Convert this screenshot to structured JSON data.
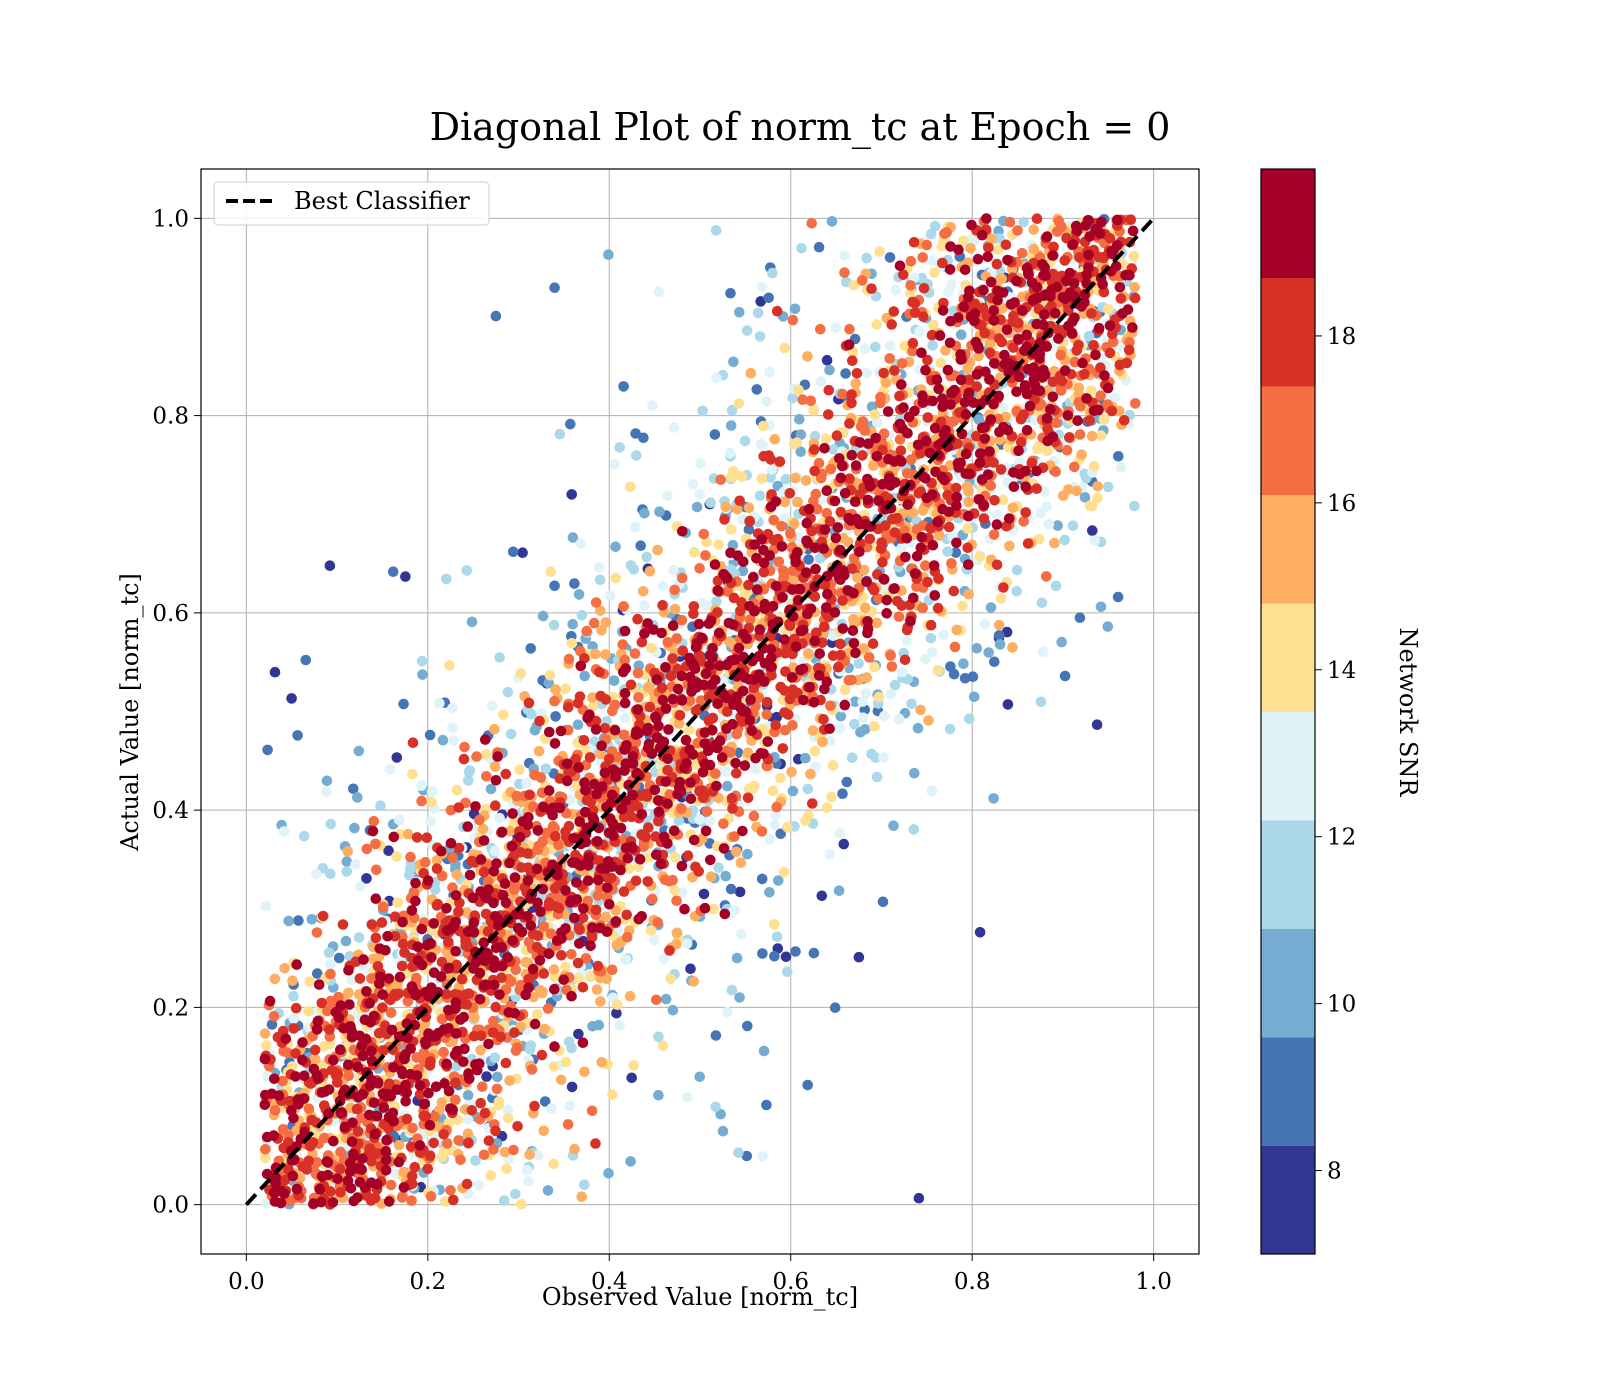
{
  "chart_data": {
    "type": "scatter",
    "title": "Diagonal Plot of norm_tc at Epoch = 0",
    "xlabel": "Observed Value [norm_tc]",
    "ylabel": "Actual Value [norm_tc]",
    "xlim": [
      -0.05,
      1.05
    ],
    "ylim": [
      -0.05,
      1.05
    ],
    "x_ticks": [
      "0.0",
      "0.2",
      "0.4",
      "0.6",
      "0.8",
      "1.0"
    ],
    "y_ticks": [
      "0.0",
      "0.2",
      "0.4",
      "0.6",
      "0.8",
      "1.0"
    ],
    "x_tick_values": [
      0,
      0.2,
      0.4,
      0.6,
      0.8,
      1.0
    ],
    "y_tick_values": [
      0,
      0.2,
      0.4,
      0.6,
      0.8,
      1.0
    ],
    "grid": true,
    "series": [
      {
        "name": "Best Classifier",
        "kind": "dashed-line",
        "color": "#000000",
        "x": [
          0,
          1
        ],
        "y": [
          0,
          1
        ]
      }
    ],
    "legend": {
      "position": "top-left",
      "entries": [
        "Best Classifier"
      ]
    },
    "colorbar": {
      "label": "Network SNR",
      "range": [
        7,
        20
      ],
      "ticks": [
        "8",
        "10",
        "12",
        "14",
        "16",
        "18"
      ],
      "tick_values": [
        8,
        10,
        12,
        14,
        16,
        18
      ],
      "bins": [
        {
          "from": 7,
          "to": 8.3,
          "color": "#313695"
        },
        {
          "from": 8.3,
          "to": 9.6,
          "color": "#4575b4"
        },
        {
          "from": 9.6,
          "to": 10.9,
          "color": "#74add1"
        },
        {
          "from": 10.9,
          "to": 12.2,
          "color": "#abd9e9"
        },
        {
          "from": 12.2,
          "to": 13.5,
          "color": "#e0f3f8"
        },
        {
          "from": 13.5,
          "to": 14.8,
          "color": "#fee090"
        },
        {
          "from": 14.8,
          "to": 16.1,
          "color": "#fdae61"
        },
        {
          "from": 16.1,
          "to": 17.4,
          "color": "#f46d43"
        },
        {
          "from": 17.4,
          "to": 18.7,
          "color": "#d73027"
        },
        {
          "from": 18.7,
          "to": 20,
          "color": "#a50026"
        }
      ]
    },
    "scatter_pattern": {
      "description_points": "approximate",
      "band_center_offset": 0.05,
      "clip": [
        0,
        1
      ]
    }
  }
}
